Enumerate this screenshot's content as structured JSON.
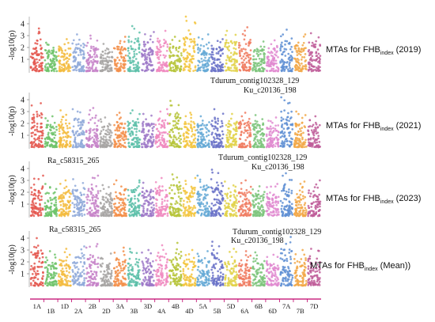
{
  "chart_data": {
    "type": "scatter",
    "chromosomes": [
      "1A",
      "1B",
      "1D",
      "2A",
      "2B",
      "2D",
      "3A",
      "3B",
      "3D",
      "4A",
      "4B",
      "4D",
      "5A",
      "5B",
      "5D",
      "6A",
      "6B",
      "6D",
      "7A",
      "7B",
      "7D"
    ],
    "chromosome_colors": [
      "#e4574f",
      "#6fc36a",
      "#f3bb3e",
      "#8fa9d9",
      "#c784c9",
      "#a7a5a3",
      "#f38f4a",
      "#5dbfa9",
      "#9d79c8",
      "#f08ac0",
      "#b6c43a",
      "#f3c63f",
      "#65a9d6",
      "#6a72c8",
      "#e2d24b",
      "#f07b60",
      "#7cc47b",
      "#e08ad0",
      "#5f8fd4",
      "#f2a848",
      "#c05e9a"
    ],
    "y_ticks": [
      1,
      2,
      3,
      4
    ],
    "ylabel": "-log10(p)",
    "panels": [
      {
        "label_main": "MTAs for FHB",
        "label_sub": "index",
        "label_suffix": " (2019)",
        "peaks": [
          3.6,
          2.4,
          2.7,
          3.1,
          3.0,
          2.3,
          2.9,
          3.8,
          3.3,
          3.4,
          2.9,
          4.6,
          3.1,
          2.7,
          3.4,
          3.7,
          2.5,
          2.6,
          3.5,
          3.1,
          3.2
        ],
        "annotations": []
      },
      {
        "label_main": "MTAs for FHB",
        "label_sub": "index",
        "label_suffix": " (2021)",
        "peaks": [
          3.7,
          2.6,
          3.1,
          3.2,
          3.3,
          2.5,
          2.9,
          3.1,
          2.8,
          3.2,
          3.9,
          2.9,
          2.6,
          3.2,
          2.8,
          2.9,
          2.7,
          2.5,
          4.2,
          3.0,
          2.6
        ],
        "annotations": [
          {
            "text": "Tdurum_contig102328_129"
          },
          {
            "text": "Ku_c20136_198"
          }
        ]
      },
      {
        "label_main": "MTAs for FHB",
        "label_sub": "index",
        "label_suffix": " (2023)",
        "peaks": [
          3.4,
          2.7,
          3.0,
          3.1,
          3.4,
          2.6,
          3.0,
          3.0,
          2.8,
          3.2,
          3.5,
          3.2,
          3.4,
          3.9,
          2.9,
          3.0,
          2.5,
          2.7,
          3.6,
          2.9,
          3.0
        ],
        "annotations": [
          {
            "text": "Ra_c58315_265"
          },
          {
            "text": "Tdurum_contig102328_129"
          },
          {
            "text": "Ku_c20136_198"
          }
        ]
      },
      {
        "label_main": "MTAs for FHB",
        "label_sub": "index",
        "label_suffix": " (Mean))",
        "peaks": [
          4.0,
          2.9,
          3.1,
          3.3,
          3.5,
          2.7,
          3.2,
          3.1,
          3.0,
          3.4,
          3.6,
          3.0,
          2.9,
          3.7,
          3.1,
          2.9,
          2.8,
          2.6,
          4.1,
          3.0,
          3.1
        ],
        "annotations": [
          {
            "text": "Ra_c58315_265"
          },
          {
            "text": "Tdurum_contig102328_129"
          },
          {
            "text": "Ku_c20136_198"
          }
        ]
      }
    ]
  }
}
